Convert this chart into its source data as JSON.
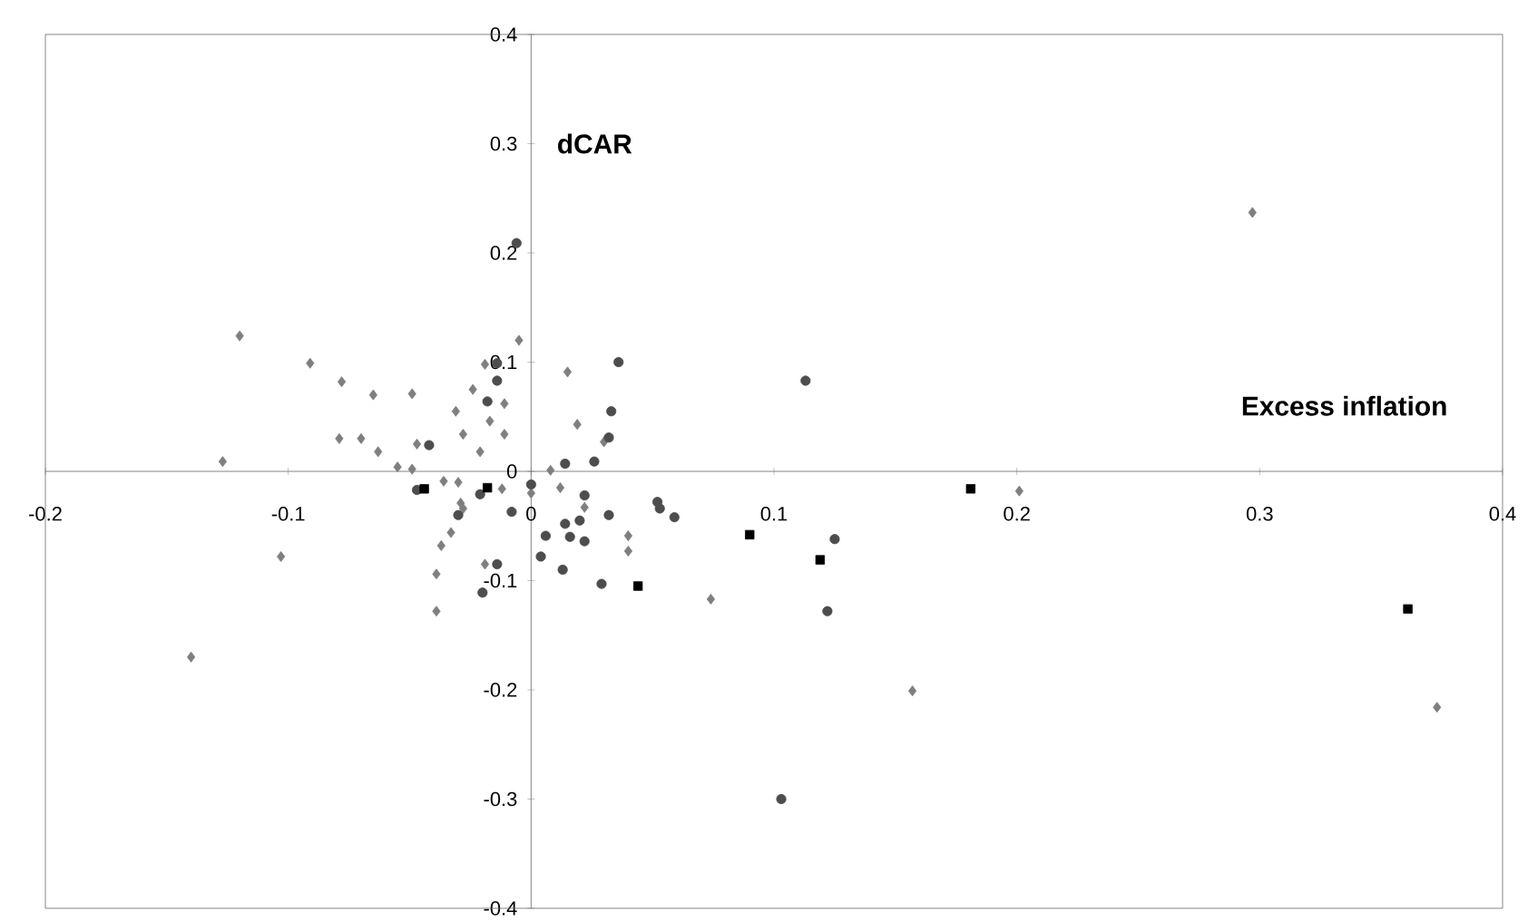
{
  "chart_data": {
    "type": "scatter",
    "xlabel": "Excess inflation",
    "ylabel": "dCAR",
    "xlim": [
      -0.2,
      0.4
    ],
    "ylim": [
      -0.4,
      0.4
    ],
    "xticks": [
      -0.2,
      -0.1,
      0,
      0.1,
      0.2,
      0.3,
      0.4
    ],
    "yticks": [
      -0.4,
      -0.3,
      -0.2,
      -0.1,
      0,
      0.1,
      0.2,
      0.3,
      0.4
    ],
    "grid": false,
    "series": [
      {
        "color": "#7f7f7f",
        "marker": "diamond",
        "x": [
          -0.12,
          -0.091,
          -0.078,
          -0.065,
          -0.049,
          -0.079,
          -0.07,
          -0.063,
          -0.127,
          -0.055,
          -0.049,
          -0.047,
          -0.103,
          -0.036,
          -0.03,
          -0.029,
          -0.028,
          -0.033,
          -0.037,
          -0.039,
          -0.039,
          -0.031,
          -0.028,
          -0.024,
          -0.019,
          -0.005,
          -0.011,
          -0.011,
          -0.017,
          -0.021,
          -0.012,
          0.012,
          0.008,
          0.015,
          0.019,
          0.022,
          0.04,
          0.04,
          -0.019,
          0.03,
          0.074,
          0,
          0.201,
          0.157,
          0.373,
          -0.14,
          0.297
        ],
        "values": [
          0.124,
          0.099,
          0.082,
          0.07,
          0.071,
          0.03,
          0.03,
          0.018,
          0.009,
          0.004,
          0.002,
          0.025,
          -0.078,
          -0.009,
          -0.01,
          -0.029,
          -0.034,
          -0.056,
          -0.068,
          -0.094,
          -0.128,
          0.055,
          0.034,
          0.075,
          0.098,
          0.12,
          0.062,
          0.034,
          0.046,
          0.018,
          -0.016,
          -0.015,
          0.001,
          0.091,
          0.043,
          -0.033,
          -0.059,
          -0.073,
          -0.085,
          0.027,
          -0.117,
          -0.02,
          -0.018,
          -0.201,
          -0.216,
          -0.17,
          0.237
        ]
      },
      {
        "color": "#4d4d4d",
        "marker": "circle",
        "x": [
          -0.042,
          -0.047,
          -0.03,
          -0.018,
          -0.014,
          -0.014,
          -0.021,
          -0.008,
          -0.014,
          -0.02,
          0,
          0.014,
          0.006,
          0.004,
          0.014,
          0.016,
          0.013,
          0.02,
          0.022,
          0.022,
          0.029,
          0.026,
          0.033,
          0.036,
          0.032,
          0.113,
          0.052,
          0.053,
          0.059,
          0.032,
          0.125,
          0.122,
          -0.006,
          0.103
        ],
        "values": [
          0.024,
          -0.017,
          -0.04,
          0.064,
          0.083,
          0.099,
          -0.021,
          -0.037,
          -0.085,
          -0.111,
          -0.012,
          0.007,
          -0.059,
          -0.078,
          -0.048,
          -0.06,
          -0.09,
          -0.045,
          -0.022,
          -0.064,
          -0.103,
          0.009,
          0.055,
          0.1,
          -0.04,
          0.083,
          -0.028,
          -0.034,
          -0.042,
          0.031,
          -0.062,
          -0.128,
          0.209,
          -0.3
        ]
      },
      {
        "color": "#000000",
        "marker": "square",
        "x": [
          -0.044,
          -0.018,
          0.044,
          0.09,
          0.119,
          0.181,
          0.361
        ],
        "values": [
          -0.016,
          -0.015,
          -0.105,
          -0.058,
          -0.081,
          -0.016,
          -0.126
        ]
      }
    ]
  }
}
